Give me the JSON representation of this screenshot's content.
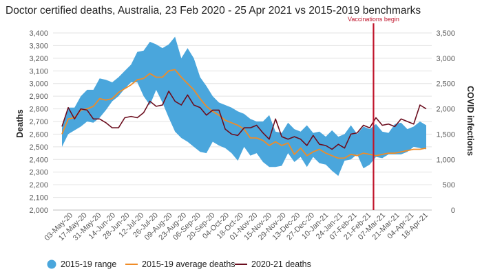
{
  "chart_data": {
    "type": "line",
    "title": "Doctor certified deaths, Australia, 23 Feb 2020 - 25 Apr 2021 vs 2015-2019 benchmarks",
    "ylabel": "Deaths",
    "y2label": "COVID infections",
    "ylim": [
      2000,
      3400
    ],
    "y2lim": [
      0,
      3500
    ],
    "yticks": [
      "2,000",
      "2,100",
      "2,200",
      "2,300",
      "2,400",
      "2,500",
      "2,600",
      "2,700",
      "2,800",
      "2,900",
      "3,000",
      "3,100",
      "3,200",
      "3,300",
      "3,400"
    ],
    "y2ticks": [
      "0",
      "500",
      "1,000",
      "1,500",
      "2,000",
      "2,500",
      "3,000",
      "3,500"
    ],
    "x_tick_labels": [
      "03-May-20",
      "17-May-20",
      "31-May-20",
      "14-Jun-20",
      "28-Jun-20",
      "12-Jul-20",
      "26-Jul-20",
      "09-Aug-20",
      "23-Aug-20",
      "06-Sep-20",
      "20-Sep-20",
      "04-Oct-20",
      "18-Oct-20",
      "01-Nov-20",
      "15-Nov-20",
      "29-Nov-20",
      "13-Dec-20",
      "27-Dec-20",
      "10-Jan-21",
      "24-Jan-21",
      "07-Feb-21",
      "21-Feb-21",
      "07-Mar-21",
      "21-Mar-21",
      "04-Apr-21",
      "18-Apr-21"
    ],
    "annotation": {
      "label": "Vaccinations begin",
      "date": "21-Feb-21"
    },
    "legend_position": "bottom",
    "grid": "horizontal",
    "series": [
      {
        "name": "2015-19 range",
        "kind": "range",
        "color": "#4aa6dc",
        "low": [
          2500,
          2600,
          2630,
          2660,
          2700,
          2690,
          2730,
          2790,
          2860,
          2900,
          2960,
          3010,
          3010,
          2900,
          2830,
          2950,
          2850,
          2730,
          2620,
          2570,
          2540,
          2500,
          2460,
          2450,
          2540,
          2510,
          2490,
          2450,
          2390,
          2500,
          2430,
          2450,
          2380,
          2340,
          2340,
          2350,
          2450,
          2380,
          2420,
          2340,
          2420,
          2370,
          2360,
          2310,
          2270,
          2390,
          2400,
          2440,
          2330,
          2360,
          2420,
          2410,
          2440,
          2440,
          2440,
          2460,
          2500,
          2490,
          2480
        ],
        "high": [
          2650,
          2810,
          2810,
          2900,
          2950,
          2950,
          3040,
          3030,
          3010,
          3050,
          3100,
          3150,
          3250,
          3260,
          3330,
          3310,
          3280,
          3310,
          3370,
          3200,
          3280,
          3200,
          3050,
          2980,
          2900,
          2850,
          2830,
          2810,
          2780,
          2760,
          2720,
          2700,
          2700,
          2750,
          2620,
          2610,
          2690,
          2640,
          2620,
          2670,
          2610,
          2620,
          2580,
          2630,
          2580,
          2600,
          2670,
          2600,
          2660,
          2640,
          2680,
          2620,
          2610,
          2680,
          2690,
          2640,
          2660,
          2700,
          2670
        ]
      },
      {
        "name": "2015-19 average deaths",
        "kind": "line",
        "color": "#f08c27",
        "values": [
          2600,
          2720,
          2730,
          2790,
          2800,
          2820,
          2880,
          2870,
          2880,
          2930,
          2960,
          2990,
          3030,
          3040,
          3080,
          3050,
          3050,
          3100,
          3110,
          3050,
          3000,
          2950,
          2880,
          2820,
          2780,
          2750,
          2710,
          2690,
          2670,
          2640,
          2570,
          2570,
          2550,
          2510,
          2540,
          2510,
          2530,
          2440,
          2490,
          2430,
          2460,
          2480,
          2450,
          2430,
          2410,
          2410,
          2440,
          2430,
          2450,
          2440,
          2430,
          2440,
          2450,
          2450,
          2460,
          2470,
          2480,
          2480,
          2490
        ]
      },
      {
        "name": "2020-21 deaths",
        "kind": "line",
        "color": "#6b0d1e",
        "values": [
          2660,
          2810,
          2720,
          2800,
          2790,
          2720,
          2720,
          2690,
          2650,
          2650,
          2730,
          2740,
          2730,
          2770,
          2860,
          2820,
          2830,
          2940,
          2860,
          2830,
          2910,
          2830,
          2810,
          2750,
          2790,
          2790,
          2640,
          2600,
          2590,
          2650,
          2650,
          2670,
          2610,
          2560,
          2720,
          2580,
          2560,
          2580,
          2560,
          2510,
          2590,
          2520,
          2510,
          2480,
          2520,
          2490,
          2600,
          2610,
          2670,
          2650,
          2730,
          2670,
          2680,
          2660,
          2720,
          2700,
          2680,
          2830,
          2800
        ]
      }
    ]
  }
}
